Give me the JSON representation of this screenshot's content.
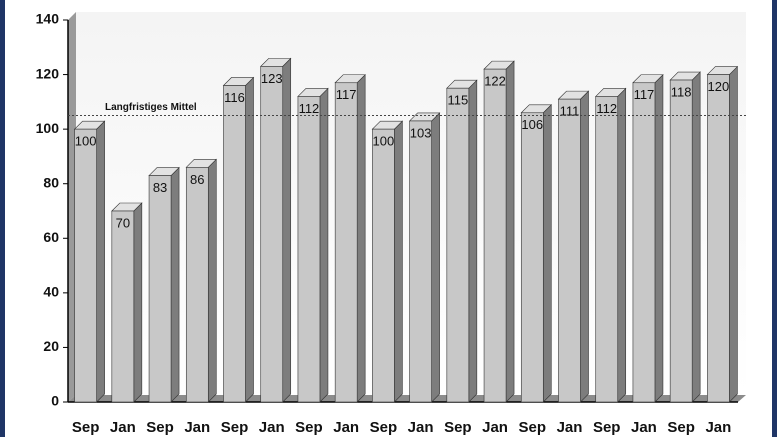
{
  "chart_data": {
    "type": "bar3d",
    "categories": [
      "Sep",
      "Jan",
      "Sep",
      "Jan",
      "Sep",
      "Jan",
      "Sep",
      "Jan",
      "Sep",
      "Jan",
      "Sep",
      "Jan",
      "Sep",
      "Jan",
      "Sep",
      "Jan",
      "Sep",
      "Jan"
    ],
    "values": [
      100,
      70,
      83,
      86,
      116,
      123,
      112,
      117,
      100,
      103,
      115,
      122,
      106,
      111,
      112,
      117,
      118,
      120
    ],
    "color": "#c8c8c8",
    "ylim": [
      0,
      140
    ],
    "yticks": [
      0,
      20,
      40,
      60,
      80,
      100,
      120,
      140
    ],
    "grid": false,
    "reference_line": {
      "value": 105,
      "label": "Langfristiges Mittel"
    }
  }
}
